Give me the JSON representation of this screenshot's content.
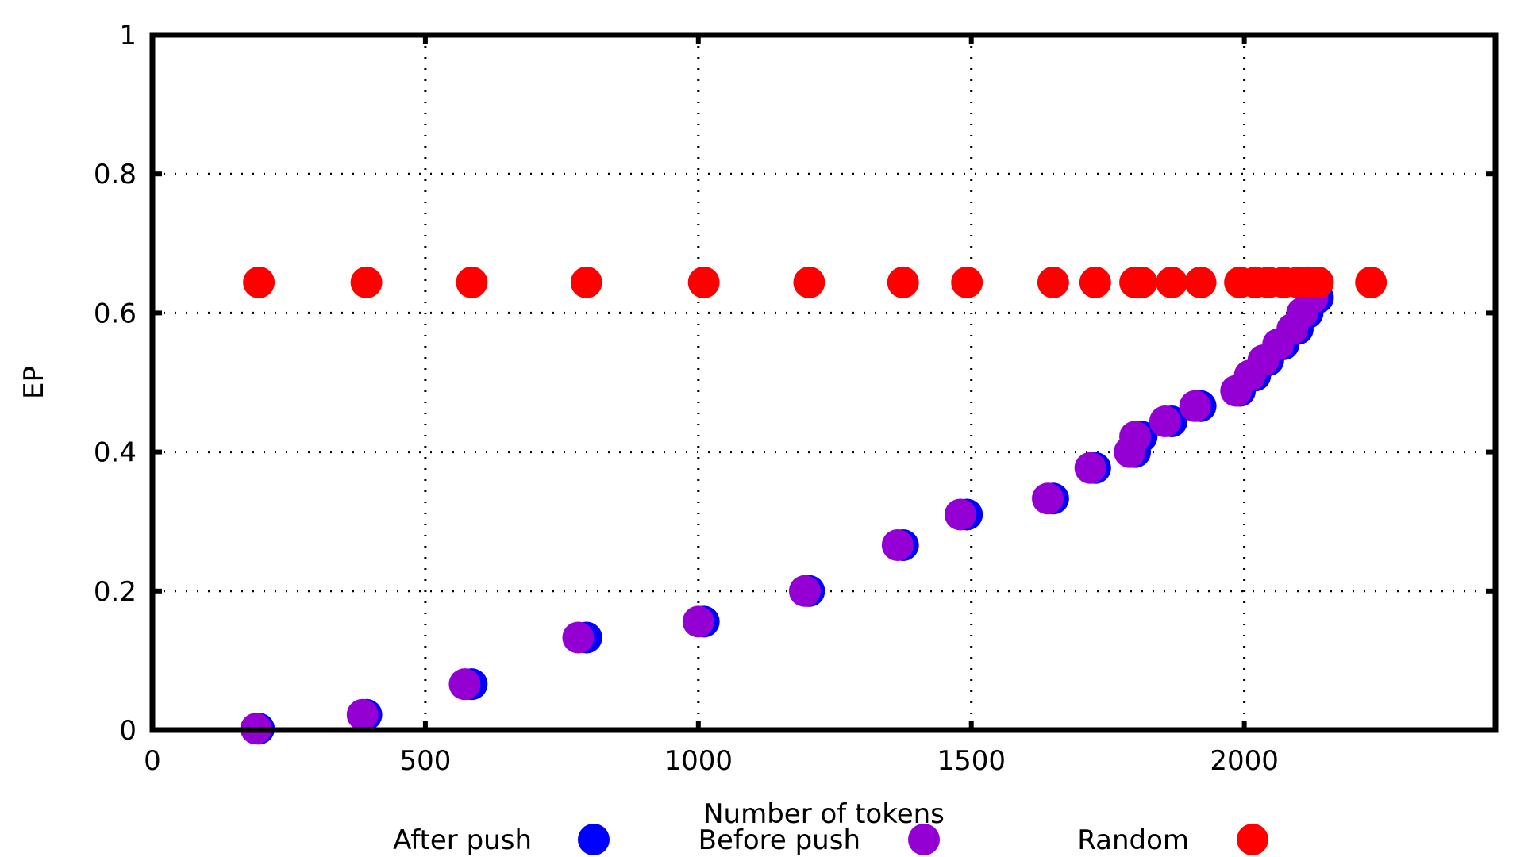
{
  "chart_data": {
    "type": "scatter",
    "title": "",
    "xlabel": "Number of tokens",
    "ylabel": "EP",
    "xlim": [
      0,
      2460
    ],
    "ylim": [
      0,
      1
    ],
    "xticks": [
      0,
      500,
      1000,
      1500,
      2000
    ],
    "yticks": [
      0,
      0.2,
      0.4,
      0.6,
      0.8,
      1
    ],
    "xtick_labels": [
      "0",
      "500",
      "1000",
      "1500",
      "2000"
    ],
    "ytick_labels": [
      "0",
      "0.2",
      "0.4",
      "0.6",
      "0.8",
      "1"
    ],
    "grid": true,
    "legend_position": "bottom",
    "series": [
      {
        "name": "After push",
        "color": "#0000ff",
        "points": [
          [
            195,
            0.002
          ],
          [
            392,
            0.022
          ],
          [
            585,
            0.066
          ],
          [
            795,
            0.133
          ],
          [
            1010,
            0.156
          ],
          [
            1203,
            0.2
          ],
          [
            1375,
            0.266
          ],
          [
            1492,
            0.31
          ],
          [
            1650,
            0.333
          ],
          [
            1727,
            0.377
          ],
          [
            1800,
            0.4
          ],
          [
            1812,
            0.422
          ],
          [
            1867,
            0.444
          ],
          [
            1920,
            0.466
          ],
          [
            1992,
            0.488
          ],
          [
            2020,
            0.51
          ],
          [
            2044,
            0.532
          ],
          [
            2072,
            0.555
          ],
          [
            2098,
            0.577
          ],
          [
            2116,
            0.6
          ],
          [
            2135,
            0.622
          ]
        ]
      },
      {
        "name": "Before push",
        "color": "#9400d3",
        "points": [
          [
            190,
            0.002
          ],
          [
            385,
            0.022
          ],
          [
            572,
            0.066
          ],
          [
            780,
            0.133
          ],
          [
            1000,
            0.156
          ],
          [
            1195,
            0.2
          ],
          [
            1365,
            0.266
          ],
          [
            1480,
            0.31
          ],
          [
            1640,
            0.333
          ],
          [
            1718,
            0.377
          ],
          [
            1790,
            0.4
          ],
          [
            1800,
            0.422
          ],
          [
            1855,
            0.444
          ],
          [
            1910,
            0.466
          ],
          [
            1985,
            0.488
          ],
          [
            2010,
            0.51
          ],
          [
            2035,
            0.532
          ],
          [
            2062,
            0.555
          ],
          [
            2088,
            0.577
          ],
          [
            2106,
            0.6
          ],
          [
            2125,
            0.622
          ]
        ]
      },
      {
        "name": "Random",
        "color": "#ff0000",
        "points": [
          [
            195,
            0.644
          ],
          [
            392,
            0.644
          ],
          [
            585,
            0.644
          ],
          [
            795,
            0.644
          ],
          [
            1010,
            0.644
          ],
          [
            1203,
            0.644
          ],
          [
            1375,
            0.644
          ],
          [
            1492,
            0.644
          ],
          [
            1650,
            0.644
          ],
          [
            1727,
            0.644
          ],
          [
            1800,
            0.644
          ],
          [
            1812,
            0.644
          ],
          [
            1867,
            0.644
          ],
          [
            1920,
            0.644
          ],
          [
            1992,
            0.644
          ],
          [
            2020,
            0.644
          ],
          [
            2044,
            0.644
          ],
          [
            2072,
            0.644
          ],
          [
            2098,
            0.644
          ],
          [
            2116,
            0.644
          ],
          [
            2135,
            0.644
          ],
          [
            2232,
            0.644
          ]
        ]
      }
    ]
  }
}
